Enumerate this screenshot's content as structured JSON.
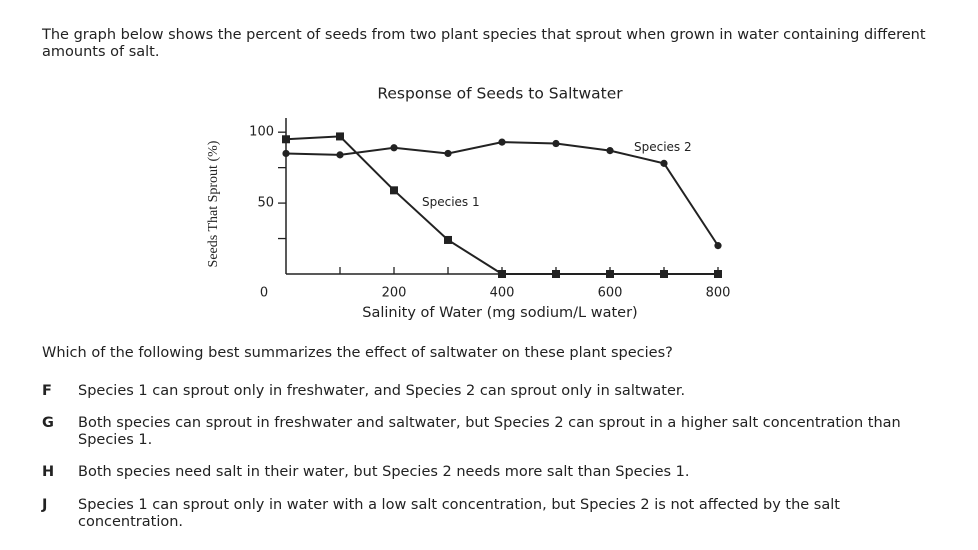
{
  "intro": "The graph below shows the percent of seeds from two plant species that sprout when grown in water containing different amounts of salt.",
  "chart_data": {
    "type": "line",
    "title": "Response of Seeds to Saltwater",
    "x_label": "Salinity of Water (mg sodium/L water)",
    "y_label": "Seeds That Sprout (%)",
    "x": [
      0,
      100,
      200,
      300,
      400,
      500,
      600,
      700,
      800
    ],
    "series": [
      {
        "name": "Species 1",
        "color": "#222222",
        "marker": "square",
        "values": [
          95,
          97,
          59,
          24,
          0,
          0,
          0,
          0,
          0
        ]
      },
      {
        "name": "Species 2",
        "color": "#222222",
        "marker": "circle",
        "values": [
          85,
          84,
          89,
          85,
          93,
          92,
          87,
          78,
          20
        ]
      }
    ],
    "xlim": [
      0,
      800
    ],
    "ylim": [
      0,
      110
    ],
    "xticks": [
      200,
      400,
      600,
      800
    ],
    "minor_xticks": [
      100,
      300,
      500,
      700
    ],
    "yticks": [
      0,
      50,
      100
    ],
    "minor_yticks": [
      25,
      75
    ],
    "grid": false
  },
  "question": "Which of the following best summarizes the effect of saltwater on these plant species?",
  "options": [
    {
      "letter": "F",
      "text": "Species 1 can sprout only in freshwater, and Species 2 can sprout only in saltwater."
    },
    {
      "letter": "G",
      "text": "Both species can sprout in freshwater and saltwater, but Species 2 can sprout in a higher salt concentration than Species 1."
    },
    {
      "letter": "H",
      "text": "Both species need salt in their water, but Species 2 needs more salt than Species 1."
    },
    {
      "letter": "J",
      "text": "Species 1 can sprout only in water with a low salt concentration, but Species 2 is not affected by the salt concentration."
    }
  ]
}
